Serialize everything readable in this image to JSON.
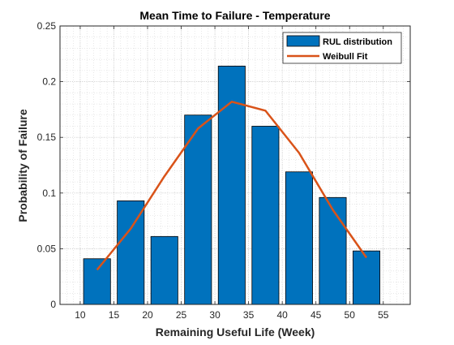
{
  "chart_data": {
    "type": "bar",
    "title": "Mean Time to Failure - Temperature",
    "xlabel": "Remaining Useful Life (Week)",
    "ylabel": "Probability of Failure",
    "xlim": [
      7,
      59
    ],
    "ylim": [
      0,
      0.25
    ],
    "xticks": [
      10,
      15,
      20,
      25,
      30,
      35,
      40,
      45,
      50,
      55
    ],
    "yticks": [
      0,
      0.05,
      0.1,
      0.15,
      0.2,
      0.25
    ],
    "ytick_labels": [
      "0",
      "0.05",
      "0.1",
      "0.15",
      "0.2",
      "0.25"
    ],
    "grid": true,
    "minor_grid": true,
    "legend_position": "top-right",
    "bar_width": 4.0,
    "series": [
      {
        "name": "RUL distribution",
        "kind": "bar",
        "color": "#0072BD",
        "x": [
          12.5,
          17.5,
          22.5,
          27.5,
          32.5,
          37.5,
          42.5,
          47.5,
          52.5
        ],
        "values": [
          0.041,
          0.093,
          0.061,
          0.17,
          0.214,
          0.16,
          0.119,
          0.096,
          0.048
        ]
      },
      {
        "name": "Weibull Fit",
        "kind": "line",
        "color": "#D95319",
        "x": [
          12.5,
          17.5,
          22.5,
          27.5,
          32.5,
          37.5,
          42.5,
          47.5,
          52.5
        ],
        "values": [
          0.031,
          0.068,
          0.115,
          0.158,
          0.182,
          0.174,
          0.136,
          0.085,
          0.042
        ]
      }
    ]
  }
}
